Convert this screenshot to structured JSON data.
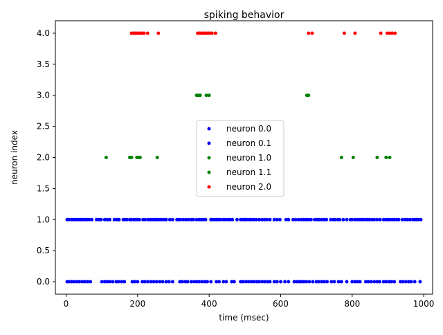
{
  "chart_data": {
    "type": "scatter",
    "title": "spiking behavior",
    "xlabel": "time (msec)",
    "ylabel": "neuron index",
    "xlim": [
      -30,
      1025
    ],
    "ylim": [
      -0.2,
      4.2
    ],
    "xticks": [
      0,
      200,
      400,
      600,
      800,
      1000
    ],
    "xtick_labels": [
      "0",
      "200",
      "400",
      "600",
      "800",
      "1000"
    ],
    "yticks": [
      0.0,
      0.5,
      1.0,
      1.5,
      2.0,
      2.5,
      3.0,
      3.5,
      4.0
    ],
    "ytick_labels": [
      "0.0",
      "0.5",
      "1.0",
      "1.5",
      "2.0",
      "2.5",
      "3.0",
      "3.5",
      "4.0"
    ],
    "grid": false,
    "legend_position": "center",
    "series": [
      {
        "name": "neuron 0.0",
        "color": "#0000ff",
        "y": 0,
        "x": [
          3,
          8,
          15,
          22,
          30,
          37,
          45,
          52,
          60,
          68,
          100,
          108,
          115,
          122,
          130,
          140,
          147,
          155,
          163,
          185,
          192,
          200,
          213,
          220,
          228,
          237,
          245,
          253,
          262,
          270,
          280,
          288,
          298,
          318,
          325,
          333,
          340,
          350,
          358,
          365,
          372,
          380,
          388,
          395,
          405,
          420,
          428,
          440,
          448,
          463,
          470,
          488,
          495,
          503,
          510,
          518,
          525,
          533,
          540,
          548,
          555,
          563,
          570,
          582,
          590,
          600,
          612,
          622,
          638,
          645,
          652,
          658,
          665,
          672,
          680,
          690,
          700,
          707,
          715,
          722,
          730,
          742,
          750,
          762,
          770,
          785,
          800,
          808,
          815,
          822,
          838,
          845,
          853,
          862,
          870,
          877,
          888,
          895,
          903,
          910,
          918,
          935,
          942,
          950,
          958,
          965,
          975,
          990
        ]
      },
      {
        "name": "neuron 0.1",
        "color": "#0000ff",
        "y": 1,
        "x": [
          3,
          8,
          15,
          20,
          25,
          30,
          35,
          40,
          45,
          50,
          55,
          60,
          65,
          72,
          85,
          92,
          98,
          108,
          115,
          122,
          135,
          142,
          148,
          160,
          165,
          170,
          178,
          183,
          190,
          196,
          200,
          205,
          215,
          220,
          228,
          235,
          240,
          245,
          250,
          255,
          262,
          268,
          275,
          280,
          290,
          298,
          310,
          315,
          320,
          328,
          335,
          342,
          350,
          356,
          365,
          372,
          378,
          384,
          390,
          405,
          410,
          415,
          420,
          426,
          432,
          440,
          445,
          452,
          458,
          465,
          478,
          488,
          495,
          500,
          505,
          512,
          518,
          525,
          532,
          540,
          548,
          555,
          562,
          570,
          582,
          590,
          598,
          615,
          622,
          635,
          642,
          650,
          658,
          665,
          672,
          678,
          685,
          695,
          702,
          708,
          715,
          722,
          728,
          740,
          748,
          752,
          760,
          765,
          775,
          785,
          795,
          800,
          808,
          815,
          822,
          828,
          835,
          842,
          848,
          855,
          862,
          870,
          878,
          888,
          895,
          900,
          905,
          912,
          918,
          925,
          930,
          940,
          948,
          955,
          962,
          970,
          975,
          980,
          985,
          992
        ]
      },
      {
        "name": "neuron 1.0",
        "color": "#008000",
        "y": 2,
        "x": [
          112,
          178,
          183,
          198,
          203,
          207,
          255,
          770,
          803,
          870,
          895,
          905
        ]
      },
      {
        "name": "neuron 1.1",
        "color": "#008000",
        "y": 3,
        "x": [
          365,
          370,
          375,
          392,
          400,
          673,
          678
        ]
      },
      {
        "name": "neuron 2.0",
        "color": "#ff0000",
        "y": 4,
        "x": [
          183,
          188,
          193,
          198,
          203,
          208,
          213,
          218,
          228,
          258,
          368,
          373,
          378,
          383,
          388,
          393,
          398,
          403,
          408,
          418,
          678,
          688,
          778,
          808,
          880,
          898,
          905,
          912,
          920
        ]
      }
    ]
  }
}
